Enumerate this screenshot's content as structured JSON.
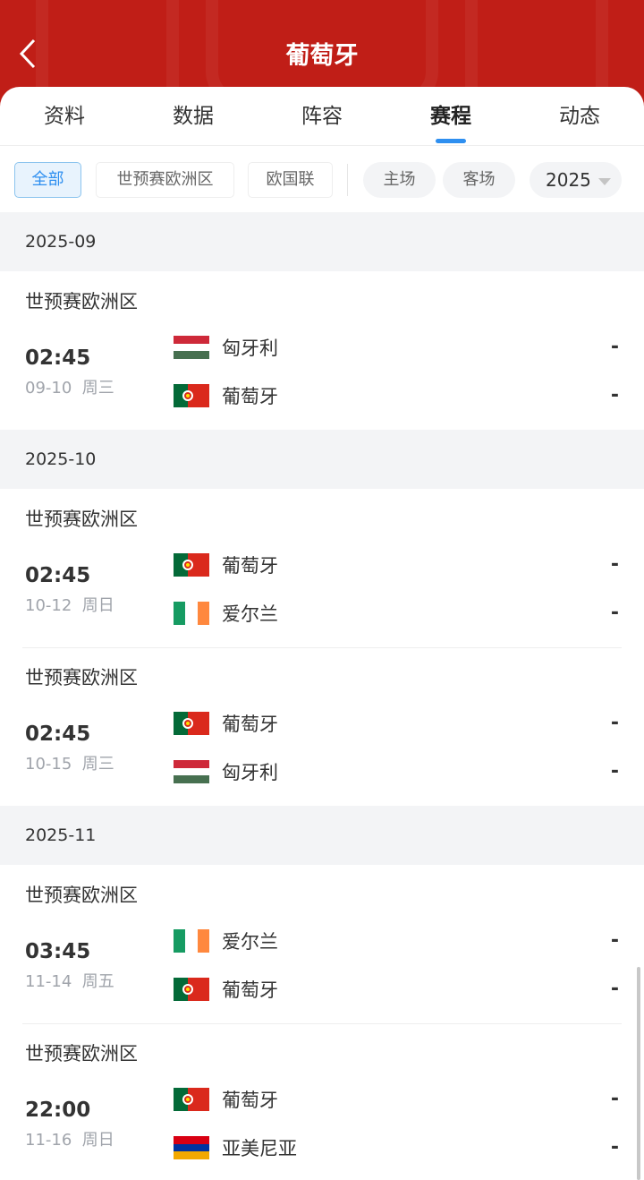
{
  "header": {
    "title": "葡萄牙"
  },
  "tabs": [
    {
      "label": "资料"
    },
    {
      "label": "数据"
    },
    {
      "label": "阵容"
    },
    {
      "label": "赛程",
      "active": true
    },
    {
      "label": "动态"
    }
  ],
  "filters": {
    "competitions": [
      "全部",
      "世预赛欧洲区",
      "欧国联"
    ],
    "venues": [
      "主场",
      "客场"
    ],
    "year": "2025"
  },
  "colors": {
    "header": "#c01e17",
    "accent": "#2e8ff0"
  },
  "months": [
    {
      "label": "2025-09",
      "matches": [
        {
          "league": "世预赛欧洲区",
          "time": "02:45",
          "date": "09-10",
          "weekday": "周三",
          "home": {
            "name": "匈牙利",
            "flag": "hungary"
          },
          "away": {
            "name": "葡萄牙",
            "flag": "portugal"
          },
          "home_score": "-",
          "away_score": "-"
        }
      ]
    },
    {
      "label": "2025-10",
      "matches": [
        {
          "league": "世预赛欧洲区",
          "time": "02:45",
          "date": "10-12",
          "weekday": "周日",
          "home": {
            "name": "葡萄牙",
            "flag": "portugal"
          },
          "away": {
            "name": "爱尔兰",
            "flag": "ireland"
          },
          "home_score": "-",
          "away_score": "-"
        },
        {
          "league": "世预赛欧洲区",
          "time": "02:45",
          "date": "10-15",
          "weekday": "周三",
          "home": {
            "name": "葡萄牙",
            "flag": "portugal"
          },
          "away": {
            "name": "匈牙利",
            "flag": "hungary"
          },
          "home_score": "-",
          "away_score": "-"
        }
      ]
    },
    {
      "label": "2025-11",
      "matches": [
        {
          "league": "世预赛欧洲区",
          "time": "03:45",
          "date": "11-14",
          "weekday": "周五",
          "home": {
            "name": "爱尔兰",
            "flag": "ireland"
          },
          "away": {
            "name": "葡萄牙",
            "flag": "portugal"
          },
          "home_score": "-",
          "away_score": "-"
        },
        {
          "league": "世预赛欧洲区",
          "time": "22:00",
          "date": "11-16",
          "weekday": "周日",
          "home": {
            "name": "葡萄牙",
            "flag": "portugal"
          },
          "away": {
            "name": "亚美尼亚",
            "flag": "armenia"
          },
          "home_score": "-",
          "away_score": "-"
        }
      ]
    }
  ]
}
